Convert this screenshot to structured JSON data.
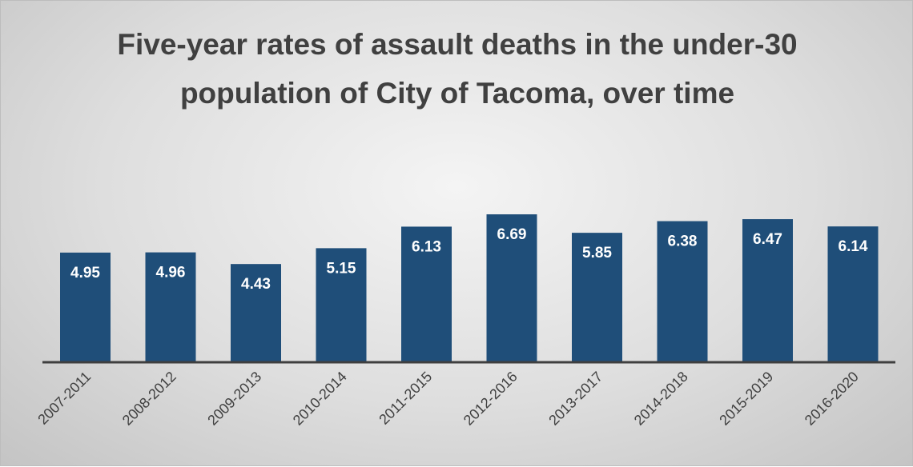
{
  "chart_data": {
    "type": "bar",
    "title": "Five-year rates of assault deaths in the under-30 population of City of Tacoma, over time",
    "categories": [
      "2007-2011",
      "2008-2012",
      "2009-2013",
      "2010-2014",
      "2011-2015",
      "2012-2016",
      "2013-2017",
      "2014-2018",
      "2015-2019",
      "2016-2020"
    ],
    "values": [
      4.95,
      4.96,
      4.43,
      5.15,
      6.13,
      6.69,
      5.85,
      6.38,
      6.47,
      6.14
    ],
    "data_labels": [
      "4.95",
      "4.96",
      "4.43",
      "5.15",
      "6.13",
      "6.69",
      "5.85",
      "6.38",
      "6.47",
      "6.14"
    ],
    "xlabel": "",
    "ylabel": "",
    "ylim": [
      0,
      7
    ],
    "grid": false,
    "y_axis_visible": false,
    "bar_color": "#1f4e79",
    "label_color": "#ffffff",
    "text_color": "#404040"
  }
}
